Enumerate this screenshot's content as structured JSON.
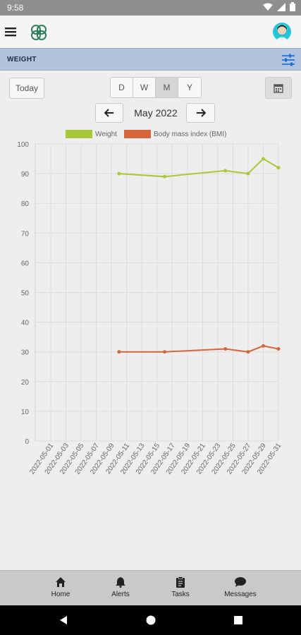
{
  "status": {
    "time": "9:58"
  },
  "section": {
    "title": "WEIGHT"
  },
  "controls": {
    "today_label": "Today",
    "periods": [
      "D",
      "W",
      "M",
      "Y"
    ],
    "active_period": "M",
    "month_label": "May 2022"
  },
  "chart_data": {
    "type": "line",
    "legend": [
      "Weight",
      "Body mass index (BMI)"
    ],
    "x_ticks": [
      "2022-05-01",
      "2022-05-03",
      "2022-05-05",
      "2022-05-07",
      "2022-05-09",
      "2022-05-11",
      "2022-05-13",
      "2022-05-15",
      "2022-05-17",
      "2022-05-19",
      "2022-05-21",
      "2022-05-23",
      "2022-05-25",
      "2022-05-27",
      "2022-05-29",
      "2022-05-31"
    ],
    "ylim": [
      0,
      100
    ],
    "y_ticks": [
      0,
      10,
      20,
      30,
      40,
      50,
      60,
      70,
      80,
      90,
      100
    ],
    "grid": true,
    "legend_position": "top",
    "series": [
      {
        "name": "Weight",
        "color": "#a8c83a",
        "x": [
          "2022-05-10",
          "2022-05-16",
          "2022-05-24",
          "2022-05-27",
          "2022-05-29",
          "2022-05-31"
        ],
        "y": [
          90,
          89,
          91,
          90,
          95,
          92
        ]
      },
      {
        "name": "Body mass index (BMI)",
        "color": "#d5653a",
        "x": [
          "2022-05-10",
          "2022-05-16",
          "2022-05-24",
          "2022-05-27",
          "2022-05-29",
          "2022-05-31"
        ],
        "y": [
          30,
          30,
          31,
          30,
          32,
          31
        ]
      }
    ]
  },
  "bottom_nav": {
    "items": [
      {
        "label": "Home",
        "icon": "home-icon"
      },
      {
        "label": "Alerts",
        "icon": "bell-icon"
      },
      {
        "label": "Tasks",
        "icon": "clipboard-icon"
      },
      {
        "label": "Messages",
        "icon": "chat-icon"
      }
    ]
  }
}
